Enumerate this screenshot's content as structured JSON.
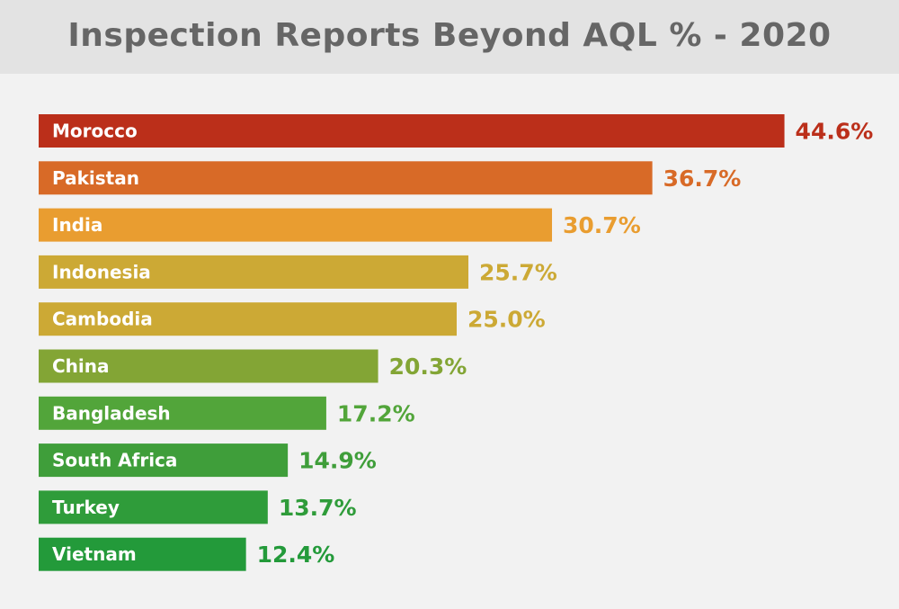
{
  "chart_data": {
    "type": "bar",
    "orientation": "horizontal",
    "title": "Inspection Reports Beyond AQL % - 2020",
    "categories": [
      "Morocco",
      "Pakistan",
      "India",
      "Indonesia",
      "Cambodia",
      "China",
      "Bangladesh",
      "South Africa",
      "Turkey",
      "Vietnam"
    ],
    "values": [
      44.6,
      36.7,
      30.7,
      25.7,
      25.0,
      20.3,
      17.2,
      14.9,
      13.7,
      12.4
    ],
    "value_labels": [
      "44.6%",
      "36.7%",
      "30.7%",
      "25.7%",
      "25.0%",
      "20.3%",
      "17.2%",
      "14.9%",
      "13.7%",
      "12.4%"
    ],
    "colors": [
      "#bb2f1a",
      "#d86a27",
      "#e99d30",
      "#cca935",
      "#cca935",
      "#83a535",
      "#52a53a",
      "#3f9e3a",
      "#2f9c3a",
      "#239a3a"
    ],
    "xlabel": "",
    "ylabel": "",
    "grid": false,
    "legend": "none"
  }
}
